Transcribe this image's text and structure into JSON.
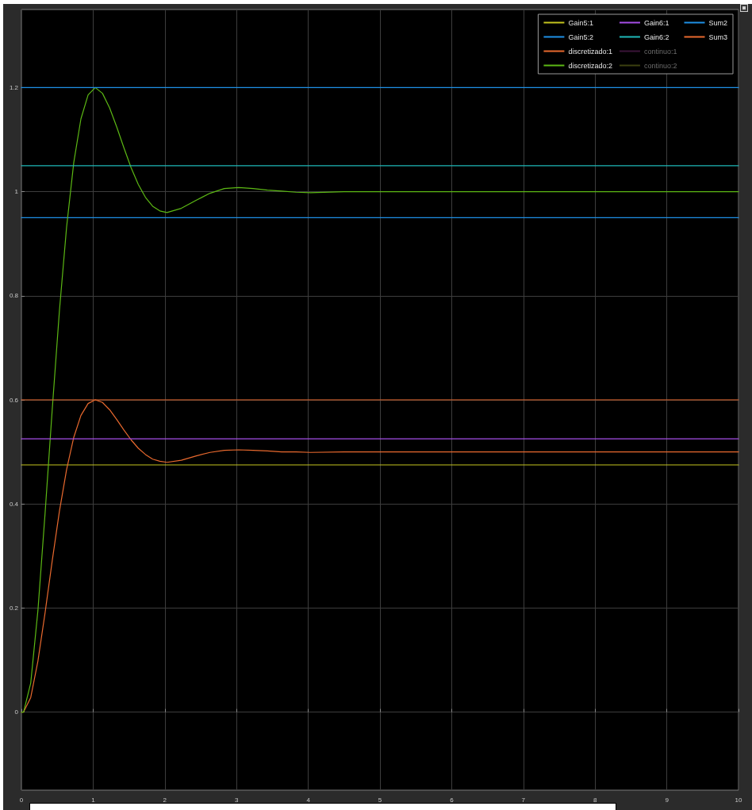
{
  "chart_data": {
    "type": "line",
    "xlim": [
      0,
      10
    ],
    "xticks": [
      0,
      1,
      2,
      3,
      4,
      5,
      6,
      7,
      8,
      9,
      10
    ],
    "ylim": [
      -0.15,
      1.35
    ],
    "yticks": [
      0,
      0.2,
      0.4,
      0.6,
      0.8,
      1,
      1.2
    ],
    "grid": true,
    "legend": "top right",
    "marker": "none",
    "line_style": "solid",
    "x": [
      0,
      0.03,
      0.13,
      0.23,
      0.33,
      0.43,
      0.53,
      0.63,
      0.73,
      0.83,
      0.93,
      1.03,
      1.13,
      1.23,
      1.33,
      1.43,
      1.53,
      1.63,
      1.73,
      1.83,
      1.93,
      2.03,
      2.23,
      2.43,
      2.63,
      2.83,
      3.03,
      3.23,
      3.43,
      3.63,
      3.83,
      4.03,
      4.5,
      5,
      6,
      7,
      8,
      9,
      10
    ],
    "series": [
      {
        "name": "Gain5:1",
        "color": "#c4c41e",
        "values": [
          0.475,
          0.475,
          0.475,
          0.475,
          0.475,
          0.475,
          0.475,
          0.475,
          0.475,
          0.475,
          0.475,
          0.475,
          0.475,
          0.475,
          0.475,
          0.475,
          0.475,
          0.475,
          0.475,
          0.475,
          0.475,
          0.475,
          0.475,
          0.475,
          0.475,
          0.475,
          0.475,
          0.475,
          0.475,
          0.475,
          0.475,
          0.475,
          0.475,
          0.475,
          0.475,
          0.475,
          0.475,
          0.475,
          0.475
        ]
      },
      {
        "name": "Gain5:2",
        "color": "#1e90e6",
        "values": [
          0.95,
          0.95,
          0.95,
          0.95,
          0.95,
          0.95,
          0.95,
          0.95,
          0.95,
          0.95,
          0.95,
          0.95,
          0.95,
          0.95,
          0.95,
          0.95,
          0.95,
          0.95,
          0.95,
          0.95,
          0.95,
          0.95,
          0.95,
          0.95,
          0.95,
          0.95,
          0.95,
          0.95,
          0.95,
          0.95,
          0.95,
          0.95,
          0.95,
          0.95,
          0.95,
          0.95,
          0.95,
          0.95,
          0.95
        ]
      },
      {
        "name": "discretizado:1",
        "color": "#e8692e",
        "values": [
          0,
          0,
          0.028,
          0.098,
          0.191,
          0.291,
          0.386,
          0.466,
          0.528,
          0.57,
          0.593,
          0.6,
          0.595,
          0.581,
          0.562,
          0.542,
          0.523,
          0.507,
          0.495,
          0.486,
          0.482,
          0.48,
          0.484,
          0.492,
          0.499,
          0.503,
          0.504,
          0.503,
          0.502,
          0.5,
          0.5,
          0.499,
          0.5,
          0.5,
          0.5,
          0.5,
          0.5,
          0.5,
          0.5
        ]
      },
      {
        "name": "discretizado:2",
        "color": "#5cb814",
        "values": [
          0,
          0,
          0.056,
          0.195,
          0.382,
          0.582,
          0.771,
          0.932,
          1.056,
          1.14,
          1.186,
          1.2,
          1.189,
          1.161,
          1.124,
          1.084,
          1.046,
          1.014,
          0.989,
          0.972,
          0.963,
          0.96,
          0.968,
          0.983,
          0.997,
          1.006,
          1.008,
          1.006,
          1.003,
          1.001,
          0.999,
          0.998,
          1,
          1,
          1,
          1,
          1,
          1,
          1
        ]
      },
      {
        "name": "Gain6:1",
        "color": "#a64ee8",
        "values": [
          0.525,
          0.525,
          0.525,
          0.525,
          0.525,
          0.525,
          0.525,
          0.525,
          0.525,
          0.525,
          0.525,
          0.525,
          0.525,
          0.525,
          0.525,
          0.525,
          0.525,
          0.525,
          0.525,
          0.525,
          0.525,
          0.525,
          0.525,
          0.525,
          0.525,
          0.525,
          0.525,
          0.525,
          0.525,
          0.525,
          0.525,
          0.525,
          0.525,
          0.525,
          0.525,
          0.525,
          0.525,
          0.525,
          0.525
        ]
      },
      {
        "name": "Gain6:2",
        "color": "#1fb8b8",
        "values": [
          1.05,
          1.05,
          1.05,
          1.05,
          1.05,
          1.05,
          1.05,
          1.05,
          1.05,
          1.05,
          1.05,
          1.05,
          1.05,
          1.05,
          1.05,
          1.05,
          1.05,
          1.05,
          1.05,
          1.05,
          1.05,
          1.05,
          1.05,
          1.05,
          1.05,
          1.05,
          1.05,
          1.05,
          1.05,
          1.05,
          1.05,
          1.05,
          1.05,
          1.05,
          1.05,
          1.05,
          1.05,
          1.05,
          1.05
        ]
      },
      {
        "name": "continuo:1",
        "color": "#3a1438",
        "values": [
          null,
          null,
          null,
          null,
          null,
          null,
          null,
          null,
          null,
          null,
          null,
          null,
          null,
          null,
          null,
          null,
          null,
          null,
          null,
          null,
          null,
          null,
          null,
          null,
          null,
          null,
          null,
          null,
          null,
          null,
          null,
          null,
          null,
          null,
          null,
          null,
          null,
          null,
          null
        ]
      },
      {
        "name": "continuo:2",
        "color": "#3c4010",
        "values": [
          null,
          null,
          null,
          null,
          null,
          null,
          null,
          null,
          null,
          null,
          null,
          null,
          null,
          null,
          null,
          null,
          null,
          null,
          null,
          null,
          null,
          null,
          null,
          null,
          null,
          null,
          null,
          null,
          null,
          null,
          null,
          null,
          null,
          null,
          null,
          null,
          null,
          null,
          null
        ]
      },
      {
        "name": "Sum2",
        "color": "#1e90e6",
        "values": [
          1.2,
          1.2,
          1.2,
          1.2,
          1.2,
          1.2,
          1.2,
          1.2,
          1.2,
          1.2,
          1.2,
          1.2,
          1.2,
          1.2,
          1.2,
          1.2,
          1.2,
          1.2,
          1.2,
          1.2,
          1.2,
          1.2,
          1.2,
          1.2,
          1.2,
          1.2,
          1.2,
          1.2,
          1.2,
          1.2,
          1.2,
          1.2,
          1.2,
          1.2,
          1.2,
          1.2,
          1.2,
          1.2,
          1.2
        ]
      },
      {
        "name": "Sum3",
        "color": "#e8692e",
        "values": [
          0.6,
          0.6,
          0.6,
          0.6,
          0.6,
          0.6,
          0.6,
          0.6,
          0.6,
          0.6,
          0.6,
          0.6,
          0.6,
          0.6,
          0.6,
          0.6,
          0.6,
          0.6,
          0.6,
          0.6,
          0.6,
          0.6,
          0.6,
          0.6,
          0.6,
          0.6,
          0.6,
          0.6,
          0.6,
          0.6,
          0.6,
          0.6,
          0.6,
          0.6,
          0.6,
          0.6,
          0.6,
          0.6,
          0.6
        ]
      }
    ]
  }
}
